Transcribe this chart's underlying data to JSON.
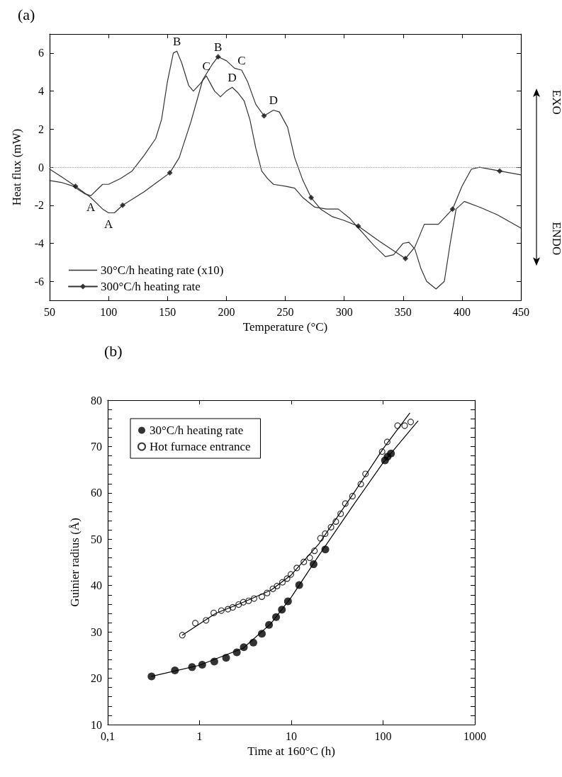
{
  "chart_data": [
    {
      "type": "line",
      "title": "(a)",
      "xlabel": "Temperature (°C)",
      "ylabel": "Heat flux (mW)",
      "xlim": [
        50,
        450
      ],
      "xticks": [
        50,
        100,
        150,
        200,
        250,
        300,
        350,
        400,
        450
      ],
      "ylim": [
        -7,
        7
      ],
      "yticks": [
        -6,
        -4,
        -2,
        0,
        2,
        4,
        6
      ],
      "legend": "bottom left",
      "marker": "none",
      "series": [
        {
          "name": "30°C/h heating rate (x10)",
          "type": "line",
          "color": "#333333",
          "x": [
            50,
            60,
            70,
            80,
            85,
            90,
            95,
            100,
            110,
            120,
            130,
            140,
            145,
            150,
            155,
            158,
            162,
            168,
            172,
            178,
            183,
            190,
            195,
            200,
            205,
            210,
            215,
            220,
            225,
            230,
            235,
            240,
            250,
            258,
            265,
            275,
            285,
            295,
            305,
            315,
            325,
            335,
            342,
            350,
            355,
            360,
            365,
            370,
            378,
            385,
            390,
            395,
            402,
            415,
            430,
            450
          ],
          "values": [
            -0.7,
            -0.8,
            -1.0,
            -1.4,
            -1.5,
            -1.2,
            -0.9,
            -0.9,
            -0.6,
            -0.2,
            0.6,
            1.5,
            2.5,
            4.5,
            6.0,
            6.1,
            5.5,
            4.3,
            4.0,
            4.4,
            4.8,
            4.0,
            3.7,
            4.0,
            4.2,
            3.9,
            3.5,
            2.5,
            1.0,
            -0.2,
            -0.6,
            -0.9,
            -1.0,
            -1.1,
            -1.6,
            -2.1,
            -2.2,
            -2.2,
            -2.7,
            -3.4,
            -4.1,
            -4.7,
            -4.6,
            -4.0,
            -3.95,
            -4.3,
            -5.3,
            -6.0,
            -6.4,
            -6.0,
            -4.0,
            -2.2,
            -1.8,
            -2.1,
            -2.5,
            -3.2
          ]
        },
        {
          "name": "300°C/h heating rate",
          "type": "line",
          "color": "#333333",
          "x": [
            50,
            60,
            72,
            85,
            95,
            100,
            105,
            112,
            130,
            152,
            160,
            170,
            180,
            188,
            193,
            200,
            207,
            213,
            218,
            225,
            232,
            240,
            245,
            252,
            258,
            265,
            272,
            280,
            290,
            300,
            312,
            330,
            352,
            360,
            368,
            380,
            392,
            400,
            408,
            415,
            432,
            450
          ],
          "values": [
            -0.1,
            -0.5,
            -1.0,
            -1.6,
            -2.2,
            -2.4,
            -2.4,
            -2.0,
            -1.3,
            -0.3,
            0.5,
            2.4,
            4.6,
            5.4,
            5.8,
            5.6,
            5.2,
            5.1,
            4.5,
            3.3,
            2.7,
            3.0,
            2.9,
            2.1,
            0.5,
            -0.7,
            -1.6,
            -2.2,
            -2.6,
            -2.8,
            -3.1,
            -3.9,
            -4.8,
            -4.2,
            -3.0,
            -3.0,
            -2.2,
            -1.0,
            -0.1,
            0.0,
            -0.2,
            -0.4
          ]
        },
        {
          "type": "scatter",
          "color": "#111111",
          "marker": "diamond",
          "x": [
            72,
            112,
            152,
            193,
            232,
            272,
            312,
            352,
            392,
            432
          ],
          "values": [
            -1.0,
            -2.0,
            -0.3,
            5.8,
            2.7,
            -1.6,
            -3.1,
            -4.8,
            -2.2,
            -0.2
          ]
        }
      ],
      "ref_lines": [
        {
          "axis": "y",
          "value": 0,
          "line_style": "dotted",
          "color": "#999999"
        }
      ],
      "annotations": [
        {
          "text": "A",
          "x": 85,
          "y": -1.5
        },
        {
          "text": "A",
          "x": 100,
          "y": -2.4
        },
        {
          "text": "B",
          "x": 158,
          "y": 6.1
        },
        {
          "text": "B",
          "x": 193,
          "y": 5.8
        },
        {
          "text": "C",
          "x": 183,
          "y": 4.8
        },
        {
          "text": "C",
          "x": 213,
          "y": 5.1
        },
        {
          "text": "D",
          "x": 205,
          "y": 4.2
        },
        {
          "text": "D",
          "x": 240,
          "y": 3.0
        },
        "EXO",
        "ENDO"
      ]
    },
    {
      "type": "scatter",
      "title": "(b)",
      "xlabel": "Time at 160°C (h)",
      "ylabel": "Guinier radius (Å)",
      "log": "x",
      "xlim": [
        0.1,
        1000
      ],
      "xticks": [
        {
          "value": 0.1,
          "label": "0,1"
        },
        1,
        10,
        100,
        1000
      ],
      "ylim": [
        10,
        80
      ],
      "yticks": [
        10,
        {
          "value": 12,
          "label": null
        },
        {
          "value": 14,
          "label": null
        },
        {
          "value": 16,
          "label": null
        },
        {
          "value": 18,
          "label": null
        },
        20,
        {
          "value": 22,
          "label": null
        },
        {
          "value": 24,
          "label": null
        },
        {
          "value": 26,
          "label": null
        },
        {
          "value": 28,
          "label": null
        },
        30,
        {
          "value": 32,
          "label": null
        },
        {
          "value": 34,
          "label": null
        },
        {
          "value": 36,
          "label": null
        },
        {
          "value": 38,
          "label": null
        },
        40,
        {
          "value": 42,
          "label": null
        },
        {
          "value": 44,
          "label": null
        },
        {
          "value": 46,
          "label": null
        },
        {
          "value": 48,
          "label": null
        },
        50,
        {
          "value": 52,
          "label": null
        },
        {
          "value": 54,
          "label": null
        },
        {
          "value": 56,
          "label": null
        },
        {
          "value": 58,
          "label": null
        },
        60,
        {
          "value": 62,
          "label": null
        },
        {
          "value": 64,
          "label": null
        },
        {
          "value": 66,
          "label": null
        },
        {
          "value": 68,
          "label": null
        },
        70,
        {
          "value": 72,
          "label": null
        },
        {
          "value": 74,
          "label": null
        },
        {
          "value": 76,
          "label": null
        },
        {
          "value": 78,
          "label": null
        },
        80
      ],
      "legend": "top left",
      "series": [
        {
          "name": "30°C/h heating rate",
          "type": "scatter",
          "marker": "circle",
          "color": "#000000",
          "x": [
            0.3,
            0.54,
            0.83,
            1.07,
            1.45,
            1.95,
            2.55,
            3.04,
            3.86,
            4.78,
            5.72,
            6.83,
            7.9,
            9.2,
            12.2,
            17.5,
            23.5,
            105,
            112,
            122
          ],
          "values": [
            20.4,
            21.7,
            22.4,
            22.9,
            23.6,
            24.4,
            25.6,
            26.7,
            27.7,
            29.6,
            31.5,
            33.2,
            34.8,
            36.6,
            40.1,
            44.6,
            47.8,
            67.0,
            67.8,
            68.5
          ]
        },
        {
          "name": "Hot furnace entrance",
          "type": "scatter",
          "marker": "open circle",
          "color": "#000000",
          "x": [
            0.65,
            0.9,
            1.18,
            1.43,
            1.73,
            2.04,
            2.3,
            2.67,
            3.0,
            3.43,
            3.93,
            4.78,
            5.45,
            6.3,
            7.0,
            8.0,
            9.0,
            9.9,
            11.5,
            13.7,
            15.9,
            17.9,
            20.8,
            23.4,
            27.1,
            30.6,
            34.5,
            38.8,
            46.4,
            57.2,
            64.4,
            97.7,
            111,
            144,
            172,
            200
          ],
          "values": [
            29.3,
            31.9,
            32.5,
            34.1,
            34.6,
            34.9,
            35.3,
            35.9,
            36.4,
            36.7,
            37.2,
            37.6,
            38.4,
            39.3,
            39.9,
            40.7,
            41.5,
            42.4,
            43.8,
            45.1,
            46.0,
            47.5,
            50.2,
            51.2,
            52.6,
            53.8,
            55.5,
            57.7,
            59.3,
            61.9,
            64.1,
            68.9,
            71.0,
            74.5,
            74.5,
            75.3
          ]
        },
        {
          "type": "line",
          "color": "#000000",
          "x": [
            0.3,
            1,
            3,
            6,
            10,
            20,
            50,
            100,
            240
          ],
          "values": [
            20.4,
            22.8,
            26.5,
            31.8,
            37.5,
            46.5,
            58,
            66.5,
            75.5
          ]
        },
        {
          "type": "line",
          "color": "#000000",
          "x": [
            0.65,
            1.5,
            3,
            6,
            10,
            20,
            50,
            100,
            195
          ],
          "values": [
            29.3,
            34,
            36.4,
            39,
            42.3,
            49,
            60.5,
            69.5,
            77.2
          ]
        }
      ]
    }
  ]
}
